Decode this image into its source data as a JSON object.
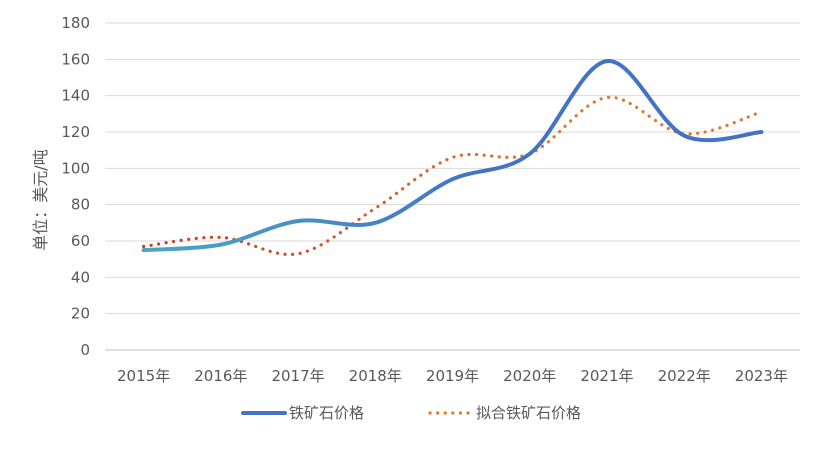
{
  "chart_data": {
    "type": "line",
    "title": "",
    "xlabel": "",
    "ylabel": "单位：美元/吨",
    "ylim": [
      0,
      180
    ],
    "yticks": [
      0,
      20,
      40,
      60,
      80,
      100,
      120,
      140,
      160,
      180
    ],
    "categories": [
      "2015年",
      "2016年",
      "2017年",
      "2018年",
      "2019年",
      "2020年",
      "2021年",
      "2022年",
      "2023年"
    ],
    "grid": true,
    "legend_position": "bottom",
    "series": [
      {
        "name": "铁矿石价格",
        "style": "solid-smooth",
        "color": "#4472C4",
        "gradient_from": "#4BACC6",
        "values": [
          55,
          58,
          71,
          70,
          94,
          108,
          159,
          118,
          120
        ]
      },
      {
        "name": "拟合铁矿石价格",
        "style": "dotted-smooth",
        "color": "#E2772E",
        "gradient_from": "#C0392B",
        "values": [
          57,
          62,
          53,
          78,
          106,
          108,
          139,
          119,
          131
        ]
      }
    ]
  }
}
